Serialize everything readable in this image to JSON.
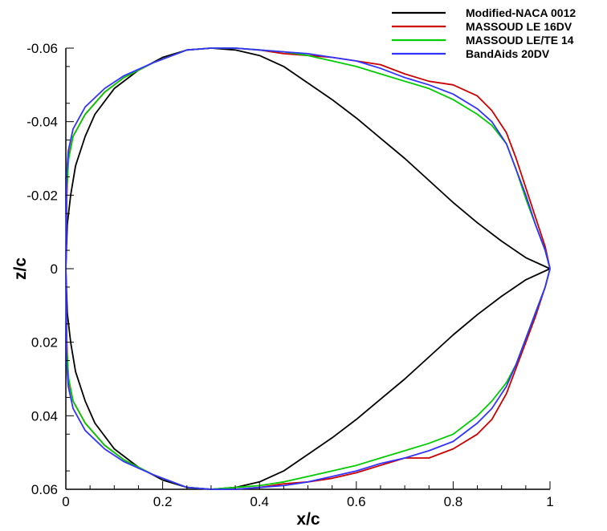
{
  "chart_data": {
    "type": "line",
    "xlabel": "x/c",
    "ylabel": "z/c",
    "xlim": [
      0,
      1
    ],
    "ylim": [
      -0.06,
      0.06
    ],
    "y_inverted": true,
    "grid": false,
    "legend_position": "top-right",
    "xticks": [
      0,
      0.2,
      0.4,
      0.6,
      0.8,
      1
    ],
    "xtick_labels": [
      "0",
      "0.2",
      "0.4",
      "0.6",
      "0.8",
      "1"
    ],
    "yticks": [
      -0.06,
      -0.04,
      -0.02,
      0,
      0.02,
      0.04,
      0.06
    ],
    "ytick_labels": [
      "-0.06",
      "-0.04",
      "-0.02",
      "0",
      "0.02",
      "0.04",
      "0.06"
    ],
    "series": [
      {
        "name": "Modified-NACA 0012",
        "color": "#000000",
        "upper": [
          [
            0,
            0
          ],
          [
            0.003,
            -0.012
          ],
          [
            0.01,
            -0.02
          ],
          [
            0.02,
            -0.028
          ],
          [
            0.04,
            -0.036
          ],
          [
            0.06,
            -0.042
          ],
          [
            0.1,
            -0.049
          ],
          [
            0.15,
            -0.054
          ],
          [
            0.2,
            -0.0575
          ],
          [
            0.25,
            -0.0595
          ],
          [
            0.3,
            -0.06
          ],
          [
            0.35,
            -0.0595
          ],
          [
            0.4,
            -0.058
          ],
          [
            0.45,
            -0.055
          ],
          [
            0.5,
            -0.0505
          ],
          [
            0.55,
            -0.046
          ],
          [
            0.6,
            -0.041
          ],
          [
            0.65,
            -0.0355
          ],
          [
            0.7,
            -0.03
          ],
          [
            0.75,
            -0.024
          ],
          [
            0.8,
            -0.018
          ],
          [
            0.85,
            -0.0125
          ],
          [
            0.9,
            -0.0075
          ],
          [
            0.95,
            -0.003
          ],
          [
            1,
            0
          ]
        ],
        "lower": [
          [
            0,
            0
          ],
          [
            0.003,
            0.012
          ],
          [
            0.01,
            0.02
          ],
          [
            0.02,
            0.028
          ],
          [
            0.04,
            0.036
          ],
          [
            0.06,
            0.042
          ],
          [
            0.1,
            0.049
          ],
          [
            0.15,
            0.054
          ],
          [
            0.2,
            0.0575
          ],
          [
            0.25,
            0.0595
          ],
          [
            0.3,
            0.06
          ],
          [
            0.35,
            0.0595
          ],
          [
            0.4,
            0.058
          ],
          [
            0.45,
            0.055
          ],
          [
            0.5,
            0.0505
          ],
          [
            0.55,
            0.046
          ],
          [
            0.6,
            0.041
          ],
          [
            0.65,
            0.0355
          ],
          [
            0.7,
            0.03
          ],
          [
            0.75,
            0.024
          ],
          [
            0.8,
            0.018
          ],
          [
            0.85,
            0.0125
          ],
          [
            0.9,
            0.0075
          ],
          [
            0.95,
            0.003
          ],
          [
            1,
            0
          ]
        ]
      },
      {
        "name": "MASSOUD LE 16DV",
        "color": "#cc0000",
        "upper": [
          [
            0,
            0
          ],
          [
            0.002,
            -0.02
          ],
          [
            0.005,
            -0.03
          ],
          [
            0.015,
            -0.036
          ],
          [
            0.04,
            -0.042
          ],
          [
            0.08,
            -0.048
          ],
          [
            0.12,
            -0.052
          ],
          [
            0.18,
            -0.056
          ],
          [
            0.25,
            -0.0595
          ],
          [
            0.3,
            -0.06
          ],
          [
            0.35,
            -0.06
          ],
          [
            0.4,
            -0.0595
          ],
          [
            0.45,
            -0.0585
          ],
          [
            0.5,
            -0.058
          ],
          [
            0.55,
            -0.0575
          ],
          [
            0.6,
            -0.0565
          ],
          [
            0.65,
            -0.0555
          ],
          [
            0.7,
            -0.053
          ],
          [
            0.75,
            -0.051
          ],
          [
            0.8,
            -0.05
          ],
          [
            0.85,
            -0.047
          ],
          [
            0.88,
            -0.043
          ],
          [
            0.91,
            -0.037
          ],
          [
            0.93,
            -0.03
          ],
          [
            0.95,
            -0.022
          ],
          [
            0.97,
            -0.014
          ],
          [
            0.99,
            -0.006
          ],
          [
            1,
            0
          ]
        ],
        "lower": [
          [
            0,
            0
          ],
          [
            0.002,
            0.02
          ],
          [
            0.005,
            0.03
          ],
          [
            0.015,
            0.036
          ],
          [
            0.04,
            0.042
          ],
          [
            0.08,
            0.048
          ],
          [
            0.12,
            0.052
          ],
          [
            0.18,
            0.056
          ],
          [
            0.25,
            0.0595
          ],
          [
            0.3,
            0.06
          ],
          [
            0.35,
            0.06
          ],
          [
            0.4,
            0.0595
          ],
          [
            0.45,
            0.0585
          ],
          [
            0.5,
            0.058
          ],
          [
            0.55,
            0.057
          ],
          [
            0.6,
            0.0555
          ],
          [
            0.65,
            0.0535
          ],
          [
            0.7,
            0.0515
          ],
          [
            0.75,
            0.0515
          ],
          [
            0.8,
            0.049
          ],
          [
            0.85,
            0.045
          ],
          [
            0.88,
            0.041
          ],
          [
            0.91,
            0.034
          ],
          [
            0.93,
            0.027
          ],
          [
            0.95,
            0.02
          ],
          [
            0.97,
            0.013
          ],
          [
            0.99,
            0.005
          ],
          [
            1,
            0
          ]
        ]
      },
      {
        "name": "MASSOUD LE/TE 14",
        "color": "#00cc00",
        "upper": [
          [
            0,
            0
          ],
          [
            0.002,
            -0.022
          ],
          [
            0.006,
            -0.03
          ],
          [
            0.015,
            -0.036
          ],
          [
            0.04,
            -0.042
          ],
          [
            0.08,
            -0.048
          ],
          [
            0.12,
            -0.052
          ],
          [
            0.18,
            -0.056
          ],
          [
            0.25,
            -0.0595
          ],
          [
            0.3,
            -0.06
          ],
          [
            0.35,
            -0.06
          ],
          [
            0.4,
            -0.0595
          ],
          [
            0.45,
            -0.059
          ],
          [
            0.5,
            -0.058
          ],
          [
            0.55,
            -0.0565
          ],
          [
            0.6,
            -0.055
          ],
          [
            0.65,
            -0.053
          ],
          [
            0.7,
            -0.051
          ],
          [
            0.75,
            -0.049
          ],
          [
            0.8,
            -0.046
          ],
          [
            0.85,
            -0.042
          ],
          [
            0.88,
            -0.039
          ],
          [
            0.91,
            -0.034
          ],
          [
            0.93,
            -0.027
          ],
          [
            0.95,
            -0.019
          ],
          [
            0.97,
            -0.012
          ],
          [
            0.99,
            -0.005
          ],
          [
            1,
            0
          ]
        ],
        "lower": [
          [
            0,
            0
          ],
          [
            0.002,
            0.022
          ],
          [
            0.006,
            0.03
          ],
          [
            0.015,
            0.036
          ],
          [
            0.04,
            0.042
          ],
          [
            0.08,
            0.048
          ],
          [
            0.12,
            0.052
          ],
          [
            0.18,
            0.056
          ],
          [
            0.25,
            0.0595
          ],
          [
            0.3,
            0.06
          ],
          [
            0.35,
            0.0595
          ],
          [
            0.4,
            0.059
          ],
          [
            0.45,
            0.058
          ],
          [
            0.5,
            0.0565
          ],
          [
            0.55,
            0.055
          ],
          [
            0.6,
            0.0535
          ],
          [
            0.65,
            0.0515
          ],
          [
            0.7,
            0.0495
          ],
          [
            0.75,
            0.0475
          ],
          [
            0.8,
            0.045
          ],
          [
            0.85,
            0.04
          ],
          [
            0.88,
            0.036
          ],
          [
            0.91,
            0.031
          ],
          [
            0.93,
            0.026
          ],
          [
            0.95,
            0.019
          ],
          [
            0.97,
            0.012
          ],
          [
            0.99,
            0.005
          ],
          [
            1,
            0
          ]
        ]
      },
      {
        "name": "BandAids 20DV",
        "color": "#3333ff",
        "upper": [
          [
            0,
            0
          ],
          [
            0.002,
            -0.026
          ],
          [
            0.005,
            -0.032
          ],
          [
            0.015,
            -0.038
          ],
          [
            0.04,
            -0.044
          ],
          [
            0.08,
            -0.049
          ],
          [
            0.12,
            -0.0525
          ],
          [
            0.18,
            -0.056
          ],
          [
            0.25,
            -0.0595
          ],
          [
            0.3,
            -0.06
          ],
          [
            0.35,
            -0.06
          ],
          [
            0.4,
            -0.0595
          ],
          [
            0.45,
            -0.059
          ],
          [
            0.5,
            -0.0585
          ],
          [
            0.55,
            -0.0575
          ],
          [
            0.6,
            -0.0565
          ],
          [
            0.65,
            -0.0545
          ],
          [
            0.7,
            -0.052
          ],
          [
            0.75,
            -0.05
          ],
          [
            0.8,
            -0.0475
          ],
          [
            0.85,
            -0.0435
          ],
          [
            0.88,
            -0.04
          ],
          [
            0.91,
            -0.034
          ],
          [
            0.93,
            -0.027
          ],
          [
            0.95,
            -0.02
          ],
          [
            0.97,
            -0.012
          ],
          [
            0.99,
            -0.005
          ],
          [
            1,
            0
          ]
        ],
        "lower": [
          [
            0,
            0
          ],
          [
            0.002,
            0.026
          ],
          [
            0.005,
            0.032
          ],
          [
            0.015,
            0.038
          ],
          [
            0.04,
            0.044
          ],
          [
            0.08,
            0.049
          ],
          [
            0.12,
            0.0525
          ],
          [
            0.18,
            0.056
          ],
          [
            0.25,
            0.0595
          ],
          [
            0.3,
            0.06
          ],
          [
            0.35,
            0.06
          ],
          [
            0.4,
            0.0595
          ],
          [
            0.45,
            0.059
          ],
          [
            0.5,
            0.058
          ],
          [
            0.55,
            0.0565
          ],
          [
            0.6,
            0.055
          ],
          [
            0.65,
            0.053
          ],
          [
            0.7,
            0.0515
          ],
          [
            0.75,
            0.0495
          ],
          [
            0.8,
            0.047
          ],
          [
            0.85,
            0.042
          ],
          [
            0.88,
            0.038
          ],
          [
            0.91,
            0.032
          ],
          [
            0.93,
            0.026
          ],
          [
            0.95,
            0.019
          ],
          [
            0.97,
            0.012
          ],
          [
            0.99,
            0.005
          ],
          [
            1,
            0
          ]
        ]
      }
    ]
  }
}
